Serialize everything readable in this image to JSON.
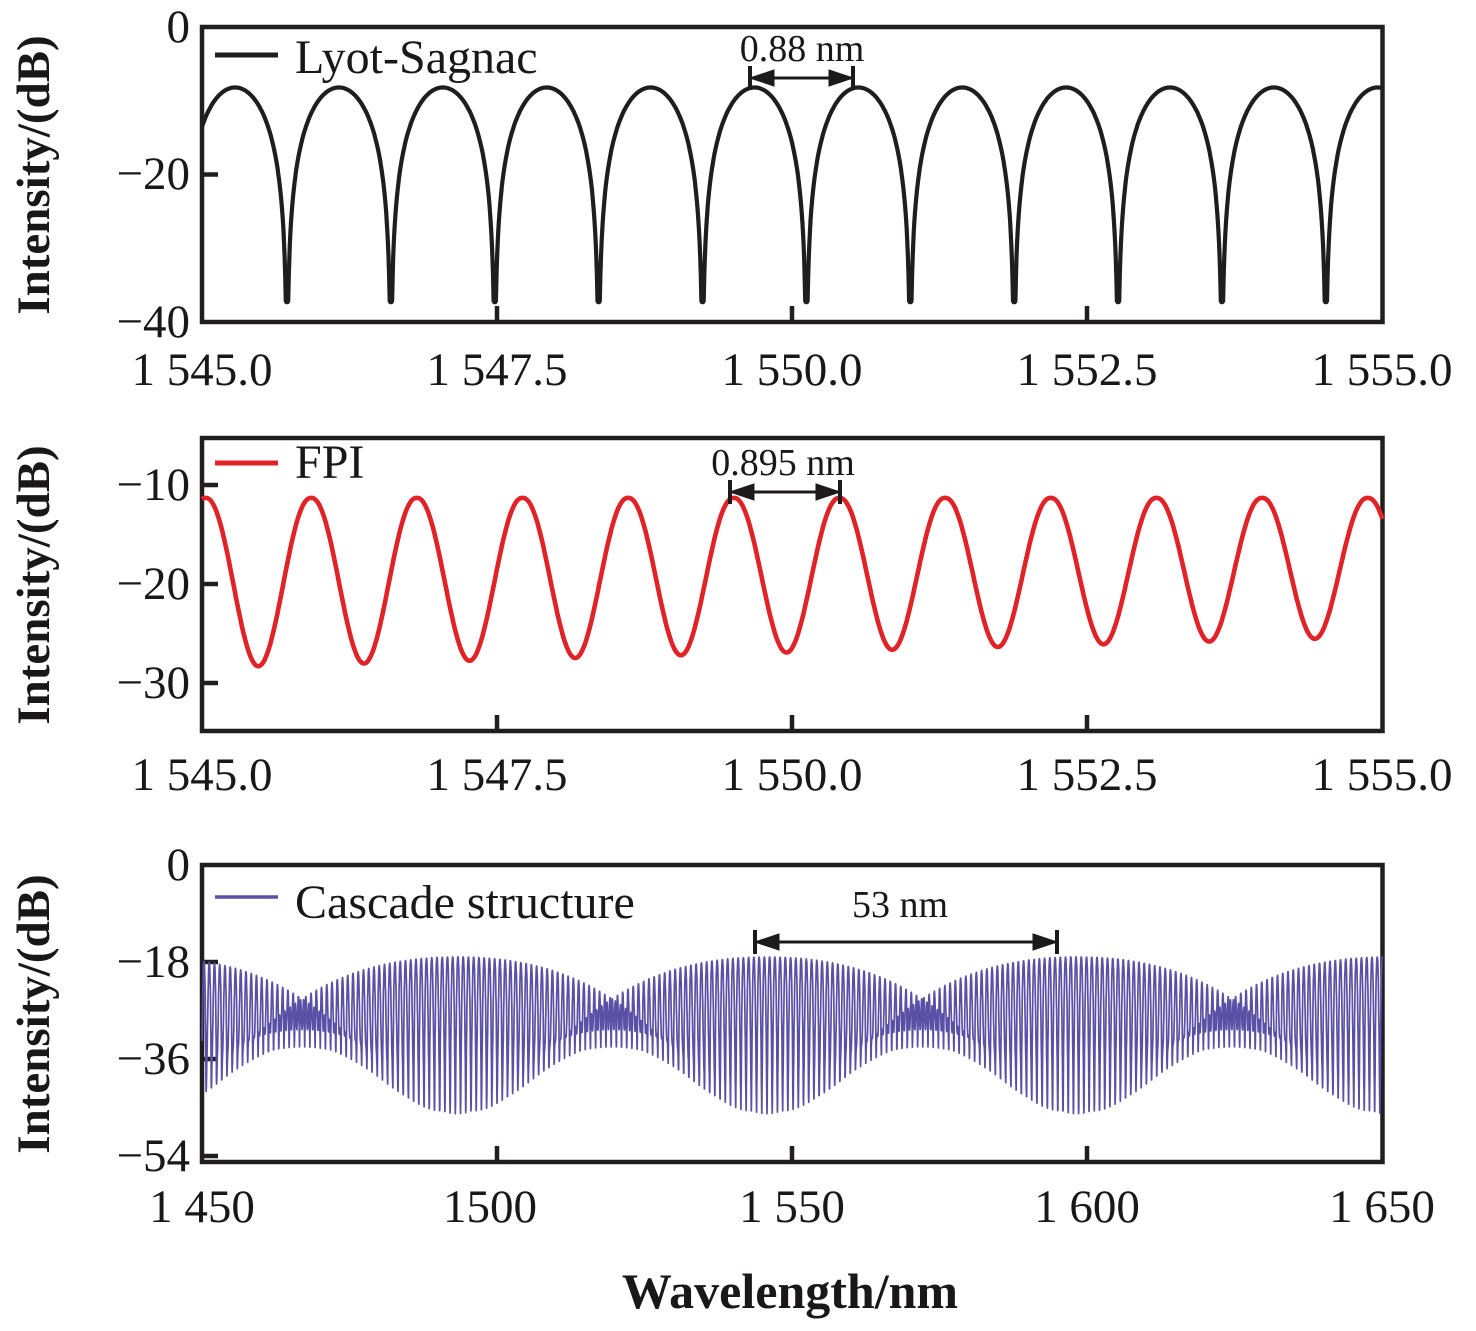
{
  "figure": {
    "x_axis_title": "Wavelength/nm",
    "y_axis_title": "Intensity/(dB)"
  },
  "panels": [
    {
      "legend": "Lyot-Sagnac",
      "annotation": "0.88 nm",
      "color": "#1f1d1d",
      "y_tick_labels": [
        "0",
        "−20",
        "−40"
      ],
      "x_tick_labels": [
        "1 545.0",
        "1 547.5",
        "1 550.0",
        "1 552.5",
        "1 555.0"
      ]
    },
    {
      "legend": "FPI",
      "annotation": "0.895 nm",
      "color": "#e02326",
      "y_tick_labels": [
        "−10",
        "−20",
        "−30"
      ],
      "x_tick_labels": [
        "1 545.0",
        "1 547.5",
        "1 550.0",
        "1 552.5",
        "1 555.0"
      ]
    },
    {
      "legend": "Cascade structure",
      "annotation": "53 nm",
      "color": "#5a50a5",
      "y_tick_labels": [
        "0",
        "−18",
        "−36",
        "−54"
      ],
      "x_tick_labels": [
        "1 450",
        "1500",
        "1 550",
        "1 600",
        "1 650"
      ]
    }
  ],
  "chart_data": [
    {
      "type": "line",
      "title": "Lyot-Sagnac filter transmission spectrum",
      "series": [
        {
          "name": "Lyot-Sagnac",
          "color": "#1f1d1d"
        }
      ],
      "xlabel": "Wavelength/nm",
      "ylabel": "Intensity/(dB)",
      "x_range": [
        1545.0,
        1555.0
      ],
      "x_ticks": [
        1545.0,
        1547.5,
        1550.0,
        1552.5,
        1555.0
      ],
      "y_ticks": [
        0,
        -20,
        -40
      ],
      "ylim": [
        -40,
        0
      ],
      "grid": false,
      "legend_position": "upper-left-inside",
      "model": {
        "kind": "sagnac_comb",
        "fsr_nm": 0.88,
        "peak_db": -8.2,
        "dip_clamp_db": -37.3,
        "peak_ref_nm": 1545.28
      },
      "annotation": {
        "label": "0.88 nm",
        "from_nm": 1549.64,
        "to_nm": 1550.51
      }
    },
    {
      "type": "line",
      "title": "FPI transmission spectrum",
      "series": [
        {
          "name": "FPI",
          "color": "#e02326"
        }
      ],
      "xlabel": "Wavelength/nm",
      "ylabel": "Intensity/(dB)",
      "x_range": [
        1545.0,
        1555.0
      ],
      "x_ticks": [
        1545.0,
        1547.5,
        1550.0,
        1552.5,
        1555.0
      ],
      "y_ticks": [
        -10,
        -20,
        -30
      ],
      "ylim": [
        -34.8,
        -5.2
      ],
      "grid": false,
      "legend_position": "upper-left-inside",
      "model": {
        "kind": "fpi_comb",
        "fsr_nm": 0.895,
        "peak_db": -11.3,
        "peak_ref_nm": 1545.03,
        "dip_depth_db_at_1545_5": 17.0,
        "dip_depth_slope_db_per_nm": -0.31,
        "dip_shape_exp": 2.2
      },
      "annotation": {
        "label": "0.895 nm",
        "from_nm": 1549.47,
        "to_nm": 1550.4
      }
    },
    {
      "type": "line",
      "title": "Cascade structure transmission spectrum (Vernier effect)",
      "series": [
        {
          "name": "Cascade structure",
          "color": "#5a50a5"
        }
      ],
      "xlabel": "Wavelength/nm",
      "ylabel": "Intensity/(dB)",
      "x_range": [
        1450,
        1650
      ],
      "x_ticks": [
        1450,
        1500,
        1550,
        1600,
        1650
      ],
      "y_ticks": [
        0,
        -18,
        -36,
        -54
      ],
      "ylim": [
        -55.7,
        0
      ],
      "grid": false,
      "legend_position": "upper-left-inside",
      "model": {
        "kind": "cascade_product",
        "sagnac_fsr_nm": 0.88,
        "fpi_fsr_nm": 0.895,
        "sagnac_peak_ref_nm": 1545.28,
        "fpi_peak_ref_nm": 1545.2725,
        "fpi_extinction_db": 14,
        "fpi_dip_shape_exp": 3.0,
        "peak_db": -16.9,
        "resolution_nm": 0.042,
        "beat_period_nm": 52.5,
        "envelope_node_centers_nm": [
          1467.0,
          1519.5,
          1572.0,
          1624.4
        ],
        "envelope_antinode_centers_nm": [
          1493.2,
          1545.7,
          1598.2,
          1650.7
        ]
      },
      "annotation": {
        "label": "53 nm",
        "from_nm": 1543.7,
        "to_nm": 1594.9
      }
    }
  ]
}
